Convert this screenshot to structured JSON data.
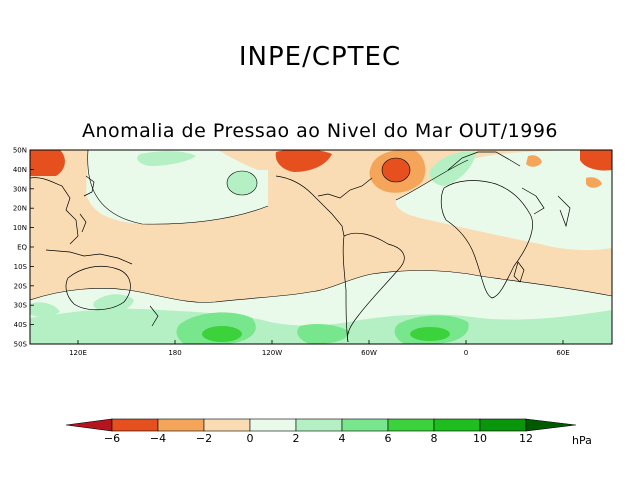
{
  "header": {
    "title": "INPE/CPTEC"
  },
  "map": {
    "title": "Anomalia de Pressao ao Nivel do Mar OUT/1996",
    "lat_labels": [
      "50N",
      "40N",
      "30N",
      "20N",
      "10N",
      "EQ",
      "10S",
      "20S",
      "30S",
      "40S",
      "50S"
    ],
    "lon_labels": [
      "120E",
      "180",
      "120W",
      "60W",
      "0",
      "60E"
    ],
    "colors": {
      "neg6": "#b4141e",
      "neg4": "#e6501e",
      "neg2": "#f5a55a",
      "neg0": "#fadcb4",
      "pos0": "#eafaea",
      "pos2": "#b4f0c3",
      "pos4": "#78e68c",
      "pos6": "#3cd23c",
      "pos8": "#1ebe1e",
      "pos10": "#0a960a",
      "pos12": "#005a00"
    }
  },
  "colorbar": {
    "labels": [
      "-6",
      "-4",
      "-2",
      "0",
      "2",
      "4",
      "6",
      "8",
      "10",
      "12"
    ],
    "unit": "hPa"
  }
}
